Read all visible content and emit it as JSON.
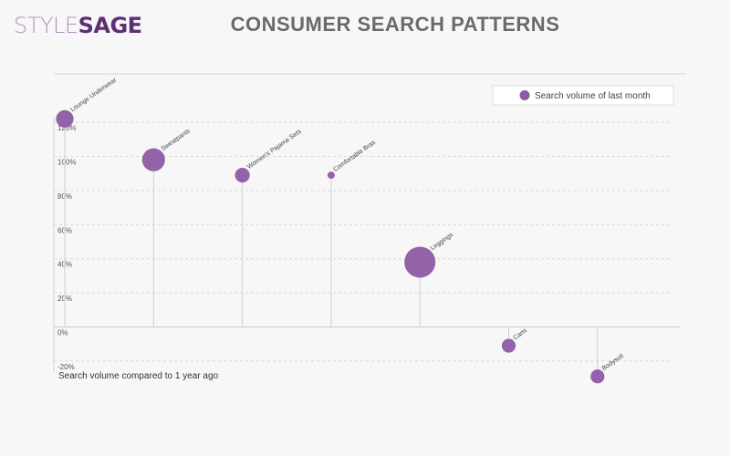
{
  "header": {
    "logo_part1": "STYLE",
    "logo_part2": "SAGE",
    "title": "CONSUMER SEARCH PATTERNS"
  },
  "colors": {
    "bubble": "#8e5aa3",
    "stem": "#cfcfcf",
    "grid": "#d8d8d8",
    "background": "#f7f7f7"
  },
  "chart_data": {
    "type": "scatter",
    "title": "CONSUMER SEARCH PATTERNS",
    "xlabel": "Search volume compared to 1 year ago",
    "ylabel": "",
    "ylim": [
      -20,
      130
    ],
    "yticks": [
      -20,
      0,
      20,
      40,
      60,
      80,
      100,
      120
    ],
    "ytick_labels": [
      "-20%",
      "0%",
      "20%",
      "40%",
      "60%",
      "80%",
      "100%",
      "120%"
    ],
    "grid": true,
    "legend_position": "top-right",
    "series": [
      {
        "name": "Search volume of last month",
        "points": [
          {
            "label": "Lounge Underwear",
            "y": 122,
            "size": 3.5
          },
          {
            "label": "Sweatpants",
            "y": 98,
            "size": 6
          },
          {
            "label": "Women's Pajama Sets",
            "y": 89,
            "size": 2.5
          },
          {
            "label": "Comfortable Bras",
            "y": 89,
            "size": 0.6
          },
          {
            "label": "Leggings",
            "y": 38,
            "size": 11
          },
          {
            "label": "Cami",
            "y": -11,
            "size": 2.2
          },
          {
            "label": "Bodysuit",
            "y": -29,
            "size": 2.2
          }
        ]
      }
    ]
  }
}
